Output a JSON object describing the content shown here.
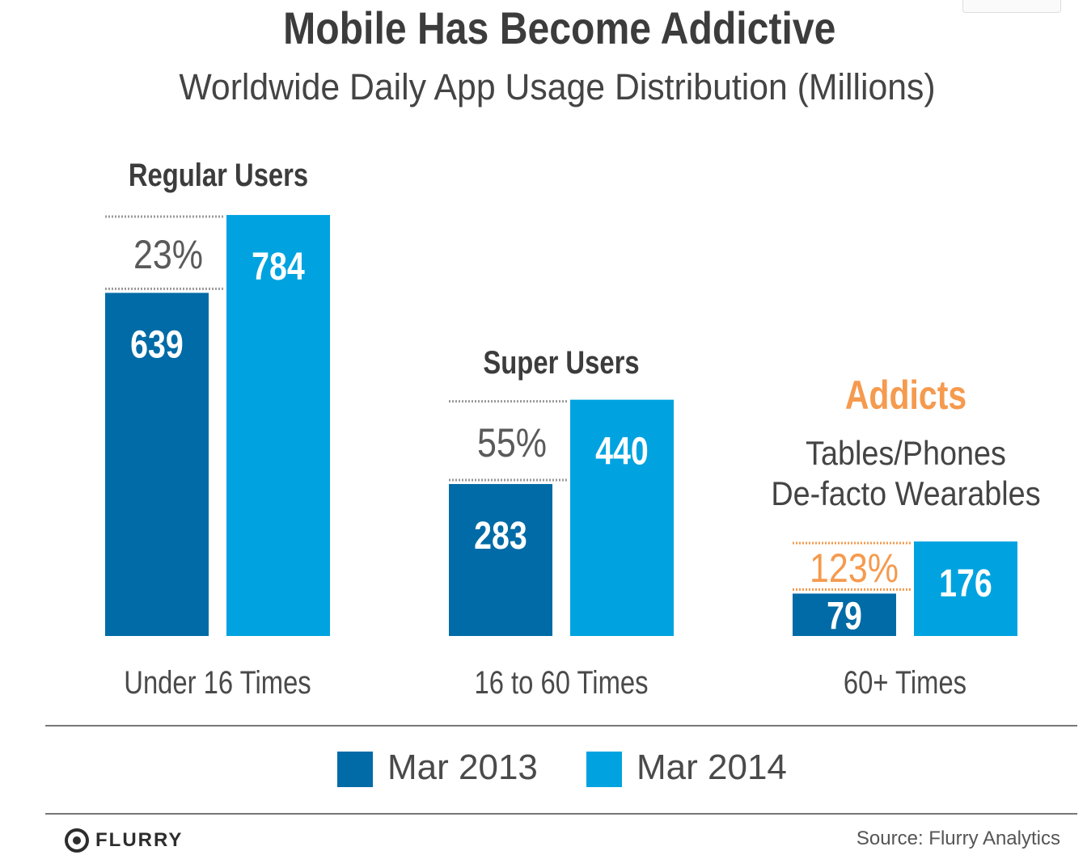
{
  "header": {
    "title": "Mobile Has Become Addictive",
    "subtitle": "Worldwide Daily App Usage Distribution (Millions)"
  },
  "colors": {
    "mar2013": "#006ba6",
    "mar2014": "#00a3e0",
    "orange": "#f59a4e",
    "grey_text": "#555555"
  },
  "chart_data": {
    "type": "bar",
    "title": "Mobile Has Become Addictive",
    "subtitle": "Worldwide Daily App Usage Distribution (Millions)",
    "categories": [
      "Under 16 Times",
      "16 to 60 Times",
      "60+ Times"
    ],
    "group_labels": [
      "Regular Users",
      "Super Users",
      "Addicts"
    ],
    "group_sublabels": [
      "",
      "",
      "Tables/Phones\nDe-facto Wearables"
    ],
    "growth_labels": [
      "23%",
      "55%",
      "123%"
    ],
    "series": [
      {
        "name": "Mar 2013",
        "values": [
          639,
          283,
          79
        ]
      },
      {
        "name": "Mar 2014",
        "values": [
          784,
          440,
          176
        ]
      }
    ],
    "ylim": [
      0,
      784
    ],
    "legend": "bottom-center",
    "grid": false
  },
  "legend": {
    "items": [
      {
        "label": "Mar 2013"
      },
      {
        "label": "Mar 2014"
      }
    ]
  },
  "footer": {
    "logo_text": "FLURRY",
    "source": "Source: Flurry Analytics"
  }
}
